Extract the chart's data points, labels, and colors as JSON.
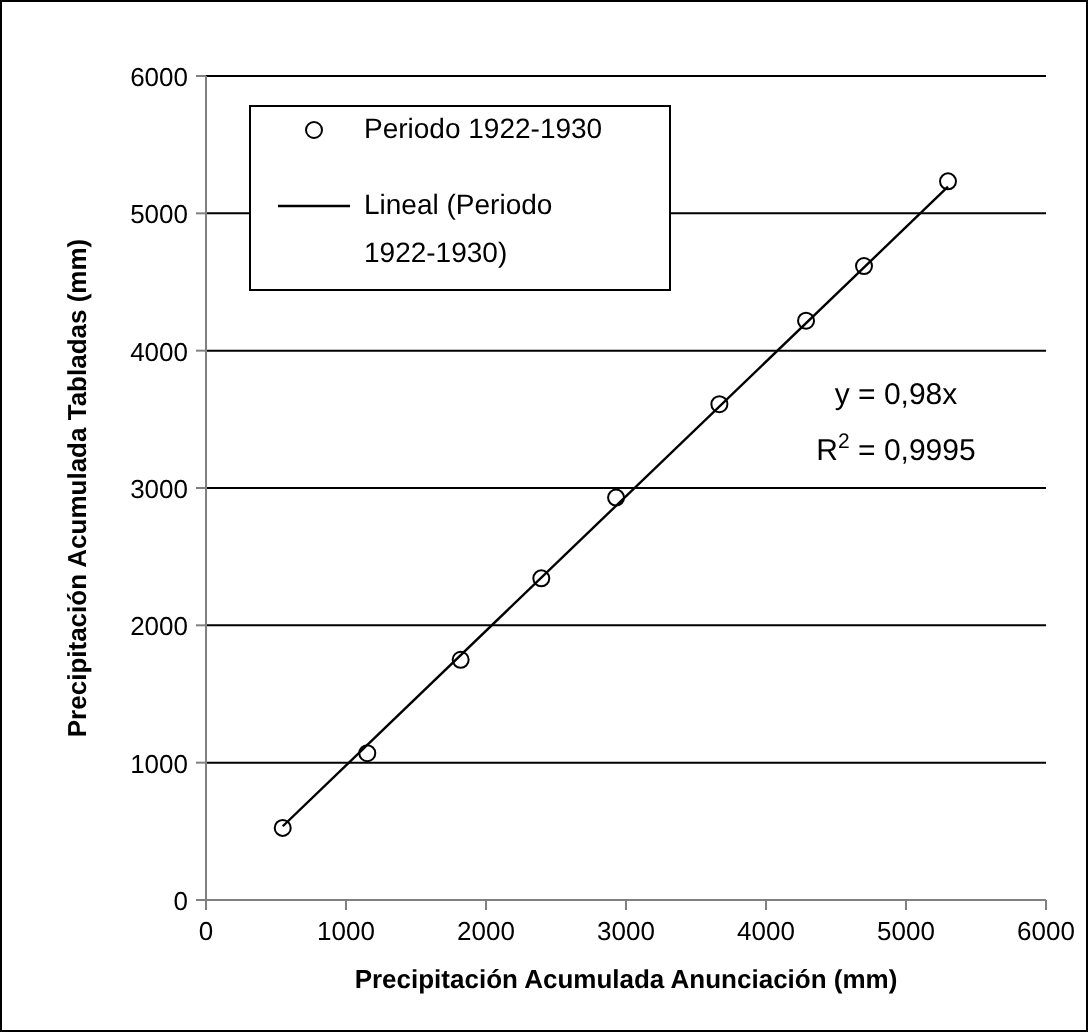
{
  "chart_data": {
    "type": "scatter",
    "xlabel": "Precipitación Acumulada Anunciación (mm)",
    "ylabel": "Precipitación Acumulada Tabladas (mm)",
    "x": [
      548,
      1152,
      1819,
      2395,
      2929,
      3667,
      4286,
      4700,
      5300
    ],
    "xlim": [
      0,
      6000
    ],
    "ylim": [
      0,
      6000
    ],
    "xticks": [
      0,
      1000,
      2000,
      3000,
      4000,
      5000,
      6000
    ],
    "yticks": [
      0,
      1000,
      2000,
      3000,
      4000,
      5000,
      6000
    ],
    "grid": "y",
    "legend": "top left",
    "marker": "circle",
    "series": [
      {
        "name": "Periodo 1922-1930",
        "color": "#000000",
        "values": [
          525,
          1069,
          1749,
          2342,
          2930,
          3610,
          4218,
          4616,
          5233
        ]
      },
      {
        "type": "line",
        "name": "Lineal (Periodo 1922-1930)",
        "color": "#000000",
        "x": [
          548,
          5300
        ],
        "values": [
          537,
          5194
        ],
        "line_style": "solid",
        "marker": "none"
      }
    ],
    "annotations": [
      "y = 0,98x",
      "R$^{2}$ = 0,9995"
    ]
  }
}
